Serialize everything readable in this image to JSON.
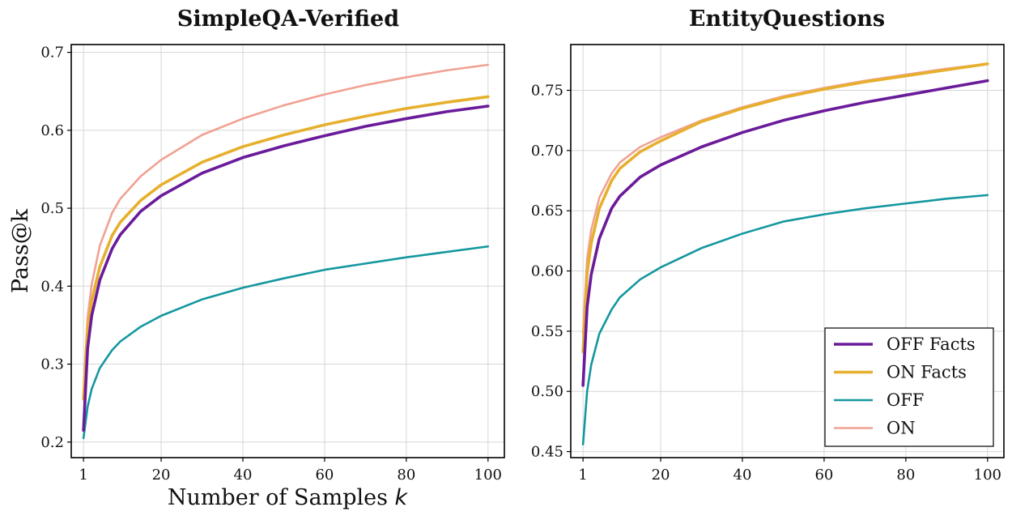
{
  "chart_data": [
    {
      "type": "line",
      "title": "SimpleQA-Verified",
      "xlabel": "Number of Samples k",
      "ylabel": "Pass@k",
      "xlim": [
        -2,
        104
      ],
      "ylim": [
        0.18,
        0.71
      ],
      "xticks": [
        1,
        20,
        40,
        60,
        80,
        100
      ],
      "yticks": [
        0.2,
        0.3,
        0.4,
        0.5,
        0.6,
        0.7
      ],
      "ytick_labels": [
        "0.2",
        "0.3",
        "0.4",
        "0.5",
        "0.6",
        "0.7"
      ],
      "grid": true,
      "x": [
        1,
        2,
        3,
        5,
        8,
        10,
        15,
        20,
        30,
        40,
        50,
        60,
        70,
        80,
        90,
        100
      ],
      "series": [
        {
          "name": "OFF Facts",
          "color": "#6a1b9a",
          "width": 3.6,
          "values": [
            0.215,
            0.32,
            0.362,
            0.408,
            0.448,
            0.466,
            0.496,
            0.516,
            0.545,
            0.565,
            0.58,
            0.593,
            0.605,
            0.615,
            0.624,
            0.631
          ]
        },
        {
          "name": "ON Facts",
          "color": "#e6b02e",
          "width": 3.6,
          "values": [
            0.255,
            0.343,
            0.381,
            0.425,
            0.465,
            0.482,
            0.51,
            0.53,
            0.559,
            0.579,
            0.594,
            0.607,
            0.618,
            0.628,
            0.636,
            0.643
          ]
        },
        {
          "name": "OFF",
          "color": "#14979f",
          "width": 2.6,
          "values": [
            0.205,
            0.245,
            0.268,
            0.295,
            0.318,
            0.329,
            0.348,
            0.362,
            0.383,
            0.398,
            0.41,
            0.421,
            0.429,
            0.437,
            0.444,
            0.451
          ]
        },
        {
          "name": "ON",
          "color": "#f1a193",
          "width": 2.6,
          "values": [
            0.265,
            0.36,
            0.402,
            0.452,
            0.494,
            0.512,
            0.541,
            0.562,
            0.594,
            0.615,
            0.632,
            0.646,
            0.658,
            0.668,
            0.677,
            0.684
          ]
        }
      ]
    },
    {
      "type": "line",
      "title": "EntityQuestions",
      "xlabel": "",
      "ylabel": "",
      "xlim": [
        -2,
        104
      ],
      "ylim": [
        0.445,
        0.788
      ],
      "xticks": [
        1,
        20,
        40,
        60,
        80,
        100
      ],
      "yticks": [
        0.45,
        0.5,
        0.55,
        0.6,
        0.65,
        0.7,
        0.75
      ],
      "ytick_labels": [
        "0.45",
        "0.50",
        "0.55",
        "0.60",
        "0.65",
        "0.70",
        "0.75"
      ],
      "grid": true,
      "legend_position": "bottom-right",
      "x": [
        1,
        2,
        3,
        5,
        8,
        10,
        15,
        20,
        30,
        40,
        50,
        60,
        70,
        80,
        90,
        100
      ],
      "series": [
        {
          "name": "OFF Facts",
          "color": "#6a1b9a",
          "width": 3.6,
          "values": [
            0.505,
            0.57,
            0.597,
            0.627,
            0.652,
            0.662,
            0.678,
            0.688,
            0.703,
            0.715,
            0.725,
            0.733,
            0.74,
            0.746,
            0.752,
            0.758
          ]
        },
        {
          "name": "ON Facts",
          "color": "#e6b02e",
          "width": 3.6,
          "values": [
            0.533,
            0.598,
            0.623,
            0.652,
            0.675,
            0.685,
            0.699,
            0.708,
            0.724,
            0.735,
            0.744,
            0.751,
            0.757,
            0.762,
            0.767,
            0.772
          ]
        },
        {
          "name": "OFF",
          "color": "#14979f",
          "width": 2.6,
          "values": [
            0.456,
            0.5,
            0.522,
            0.548,
            0.568,
            0.578,
            0.593,
            0.603,
            0.619,
            0.631,
            0.641,
            0.647,
            0.652,
            0.656,
            0.66,
            0.663
          ]
        },
        {
          "name": "ON",
          "color": "#f1a193",
          "width": 2.6,
          "values": [
            0.548,
            0.61,
            0.634,
            0.661,
            0.681,
            0.69,
            0.703,
            0.711,
            0.725,
            0.736,
            0.745,
            0.752,
            0.758,
            0.763,
            0.768,
            0.772
          ]
        }
      ]
    }
  ]
}
